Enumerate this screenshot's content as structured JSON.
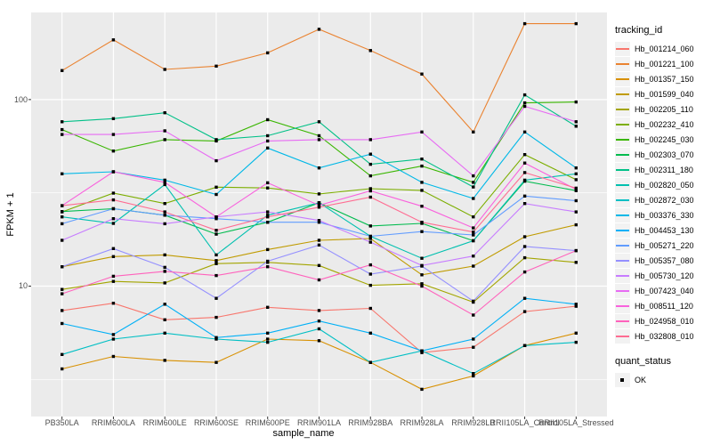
{
  "chart_data": {
    "type": "line",
    "title": "",
    "xlabel": "sample_name",
    "ylabel": "FPKM + 1",
    "y_scale": "log10",
    "ylim": [
      2.0,
      293
    ],
    "y_major_ticks": [
      10,
      100
    ],
    "y_minor_ticks": [
      3.162,
      31.62
    ],
    "grid": "on",
    "panel_bg": "#EBEBEB",
    "grid_color": "#FFFFFF",
    "tick_text_color": "#4d4d4d",
    "point_color": "#000000",
    "point_shape": "square",
    "legend_position": "right",
    "legend_title": "tracking_id",
    "legend2_title": "quant_status",
    "legend2_items": [
      {
        "label": "OK",
        "shape": "square",
        "color": "#000000"
      }
    ],
    "categories": [
      "PB350LA",
      "RRIM600LA",
      "RRIM600LE",
      "RRIM600SE",
      "RRIM600PE",
      "RRIM901LA",
      "RRIM928BA",
      "RRIM928LA",
      "RRIM928LB",
      "RRII105LA_Control",
      "RRII105LA_Stressed"
    ],
    "series": [
      {
        "name": "Hb_001214_060",
        "color": "#F8766D",
        "values": [
          7.4,
          8.1,
          6.6,
          6.8,
          7.7,
          7.4,
          7.6,
          4.4,
          4.7,
          7.3,
          7.8
        ]
      },
      {
        "name": "Hb_001221_100",
        "color": "#EA8331",
        "values": [
          143,
          209,
          145,
          151,
          178,
          238,
          183,
          137,
          67,
          255,
          255
        ]
      },
      {
        "name": "Hb_001357_150",
        "color": "#D89000",
        "values": [
          3.6,
          4.2,
          4.0,
          3.9,
          5.2,
          5.1,
          3.9,
          2.8,
          3.3,
          4.8,
          5.6
        ]
      },
      {
        "name": "Hb_001599_040",
        "color": "#C09B00",
        "values": [
          12.7,
          14.4,
          14.7,
          13.7,
          15.7,
          17.6,
          18.0,
          11.5,
          12.8,
          18.4,
          21.3
        ]
      },
      {
        "name": "Hb_002205_110",
        "color": "#A3A500",
        "values": [
          9.6,
          10.6,
          10.4,
          13.2,
          13.4,
          12.9,
          10.1,
          10.3,
          8.2,
          14.2,
          13.4
        ]
      },
      {
        "name": "Hb_002232_410",
        "color": "#7CAE00",
        "values": [
          25.0,
          31.5,
          27.7,
          33.9,
          33.6,
          31.2,
          33.3,
          32.6,
          23.5,
          50.7,
          37.2
        ]
      },
      {
        "name": "Hb_002245_030",
        "color": "#39B600",
        "values": [
          69,
          53,
          61,
          60,
          78,
          64,
          39,
          44,
          36,
          96,
          97
        ]
      },
      {
        "name": "Hb_002303_070",
        "color": "#00BB4E",
        "values": [
          25.1,
          26.0,
          24.0,
          19.0,
          22.0,
          28.0,
          21.0,
          21.7,
          17.5,
          36.5,
          32.5
        ]
      },
      {
        "name": "Hb_002311_180",
        "color": "#00C087",
        "values": [
          76,
          79,
          85,
          61,
          64,
          76,
          45,
          48,
          34,
          106,
          72
        ]
      },
      {
        "name": "Hb_002820_050",
        "color": "#00C0AF",
        "values": [
          23.5,
          21.7,
          35,
          14.7,
          24,
          28,
          18.5,
          14.1,
          17.5,
          37,
          40
        ]
      },
      {
        "name": "Hb_002872_030",
        "color": "#00BFC4",
        "values": [
          4.3,
          5.2,
          5.6,
          5.2,
          5.0,
          5.9,
          3.9,
          4.5,
          3.4,
          4.8,
          5.0
        ]
      },
      {
        "name": "Hb_003376_330",
        "color": "#00B8E7",
        "values": [
          40,
          41,
          37,
          31,
          55,
          43,
          51,
          36,
          29.5,
          67,
          43
        ]
      },
      {
        "name": "Hb_004453_130",
        "color": "#00B0F6",
        "values": [
          6.3,
          5.5,
          8.0,
          5.3,
          5.6,
          6.5,
          5.6,
          4.5,
          5.2,
          8.6,
          8.0
        ]
      },
      {
        "name": "Hb_005271_220",
        "color": "#619CFF",
        "values": [
          21.6,
          26,
          24,
          23,
          22,
          22,
          18.5,
          19.6,
          18.8,
          30.4,
          28.7
        ]
      },
      {
        "name": "Hb_005357_080",
        "color": "#9590FF",
        "values": [
          12.7,
          15.9,
          12.6,
          8.6,
          13.6,
          16.6,
          11.6,
          12.8,
          8.3,
          16.3,
          15.5
        ]
      },
      {
        "name": "Hb_005730_120",
        "color": "#C77CFF",
        "values": [
          17.6,
          23,
          21.6,
          23.5,
          25,
          22.5,
          17.2,
          12.9,
          14.5,
          27.7,
          25.0
        ]
      },
      {
        "name": "Hb_007423_040",
        "color": "#E76BF3",
        "values": [
          65,
          65,
          68,
          47,
          60,
          61,
          61,
          67,
          39,
          92,
          76
        ]
      },
      {
        "name": "Hb_008511_120",
        "color": "#F962DD",
        "values": [
          27,
          41,
          36,
          23.5,
          35.8,
          27.1,
          32.4,
          26.8,
          20.5,
          45.7,
          33
        ]
      },
      {
        "name": "Hb_024958_010",
        "color": "#FF62BC",
        "values": [
          9.1,
          11.3,
          12.0,
          11.4,
          12.7,
          10.8,
          13.0,
          10.0,
          7.0,
          11.9,
          15.5
        ]
      },
      {
        "name": "Hb_032808_010",
        "color": "#FF6C92",
        "values": [
          27,
          29,
          25,
          19.9,
          23.5,
          26.5,
          30,
          22,
          19.5,
          40.6,
          33.5
        ]
      }
    ]
  }
}
